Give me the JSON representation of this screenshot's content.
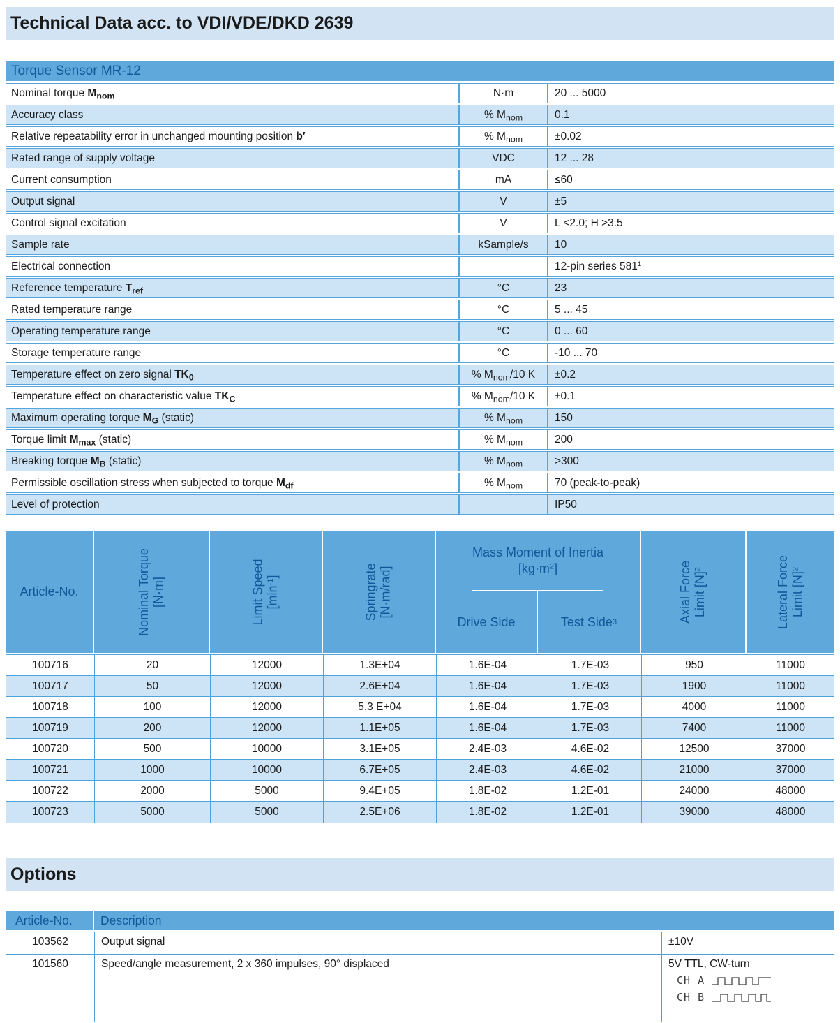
{
  "header": {
    "title": "Technical Data acc. to VDI/VDE/DKD 2639"
  },
  "colors": {
    "band_bg": "#D2E4F4",
    "table_header_bg": "#5FA8DB",
    "table_header_text": "#11589A",
    "row_alt_bg": "#CDE4F6",
    "border_blue": "#4FA3DC",
    "body_text": "#1C1C1C"
  },
  "spec_table": {
    "title": "Torque Sensor MR-12",
    "rows": [
      {
        "label": "Nominal torque **M~nom~**",
        "unit": "N·m",
        "value": "20 ... 5000"
      },
      {
        "label": "Accuracy class",
        "unit": "% M~nom~",
        "value": "0.1"
      },
      {
        "label": "Relative repeatability error in unchanged mounting position **b′**",
        "unit": "% M~nom~",
        "value": "±0.02"
      },
      {
        "label": "Rated range of supply voltage",
        "unit": "VDC",
        "value": "12 ... 28"
      },
      {
        "label": "Current consumption",
        "unit": "mA",
        "value": "≤60"
      },
      {
        "label": "Output signal",
        "unit": "V",
        "value": "±5"
      },
      {
        "label": "Control signal excitation",
        "unit": "V",
        "value": "L <2.0; H >3.5"
      },
      {
        "label": "Sample rate",
        "unit": "kSample/s",
        "value": "10"
      },
      {
        "label": "Electrical connection",
        "unit": "",
        "value": "12-pin series 581^1^"
      },
      {
        "label": "Reference temperature **T~ref~**",
        "unit": "°C",
        "value": "23"
      },
      {
        "label": "Rated temperature range",
        "unit": "°C",
        "value": "5 ... 45"
      },
      {
        "label": "Operating temperature range",
        "unit": "°C",
        "value": "0 ... 60"
      },
      {
        "label": "Storage temperature range",
        "unit": "°C",
        "value": "-10 ... 70"
      },
      {
        "label": "Temperature effect on zero signal **TK~0~**",
        "unit": "% M~nom~/10 K",
        "value": "±0.2"
      },
      {
        "label": "Temperature effect on characteristic value **TK~C~**",
        "unit": "% M~nom~/10 K",
        "value": "±0.1"
      },
      {
        "label": "Maximum operating torque **M~G~** (static)",
        "unit": "% M~nom~",
        "value": "150"
      },
      {
        "label": "Torque limit **M~max~** (static)",
        "unit": "% M~nom~",
        "value": "200"
      },
      {
        "label": "Breaking torque **M~B~** (static)",
        "unit": "% M~nom~",
        "value": ">300"
      },
      {
        "label": "Permissible oscillation stress when subjected to torque **M~df~**",
        "unit": "% M~nom~",
        "value": "70 (peak-to-peak)"
      },
      {
        "label": "Level of protection",
        "unit": "",
        "value": "IP50"
      }
    ]
  },
  "article_table": {
    "col_article": "Article-No.",
    "rotated_before": [
      [
        "Nominal Torque",
        "[N·m]"
      ],
      [
        "Limit Speed",
        "[min^-1^]"
      ],
      [
        "Springrate",
        "[N·m/rad]"
      ]
    ],
    "inertia_group": {
      "title_lines": [
        "Mass Moment of Inertia",
        "[kg·m^2^]"
      ],
      "sub_columns": [
        "Drive Side",
        "Test Side^3^"
      ]
    },
    "rotated_after": [
      [
        "Axial Force",
        "Limit [N]^2^"
      ],
      [
        "Lateral Force",
        "Limit [N]^2^"
      ]
    ],
    "rows": [
      [
        "100716",
        "20",
        "12000",
        "1.3E+04",
        "1.6E-04",
        "1.7E-03",
        "950",
        "11000"
      ],
      [
        "100717",
        "50",
        "12000",
        "2.6E+04",
        "1.6E-04",
        "1.7E-03",
        "1900",
        "11000"
      ],
      [
        "100718",
        "100",
        "12000",
        "5.3 E+04",
        "1.6E-04",
        "1.7E-03",
        "4000",
        "11000"
      ],
      [
        "100719",
        "200",
        "12000",
        "1.1E+05",
        "1.6E-04",
        "1.7E-03",
        "7400",
        "11000"
      ],
      [
        "100720",
        "500",
        "10000",
        "3.1E+05",
        "2.4E-03",
        "4.6E-02",
        "12500",
        "37000"
      ],
      [
        "100721",
        "1000",
        "10000",
        "6.7E+05",
        "2.4E-03",
        "4.6E-02",
        "21000",
        "37000"
      ],
      [
        "100722",
        "2000",
        "5000",
        "9.4E+05",
        "1.8E-02",
        "1.2E-01",
        "24000",
        "48000"
      ],
      [
        "100723",
        "5000",
        "5000",
        "2.5E+06",
        "1.8E-02",
        "1.2E-01",
        "39000",
        "48000"
      ]
    ]
  },
  "options": {
    "heading": "Options",
    "header": {
      "article": "Article-No.",
      "description": "Description"
    },
    "rows": [
      {
        "article": "103562",
        "description": "Output signal",
        "value": "±10V",
        "channels": []
      },
      {
        "article": "101560",
        "description": "Speed/angle measurement, 2 x 360 impulses, 90° displaced",
        "value": "5V TTL, CW-turn",
        "channels": [
          "CH A",
          "CH B"
        ]
      }
    ]
  }
}
